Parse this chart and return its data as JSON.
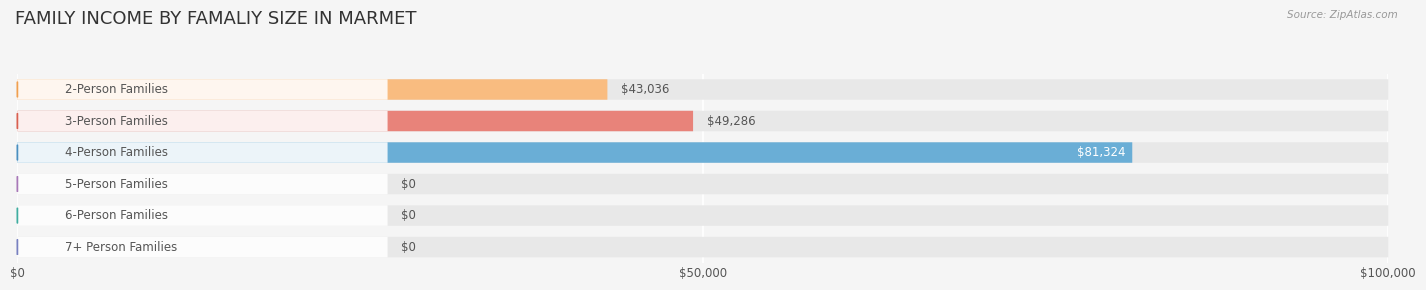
{
  "title": "FAMILY INCOME BY FAMALIY SIZE IN MARMET",
  "source": "Source: ZipAtlas.com",
  "categories": [
    "2-Person Families",
    "3-Person Families",
    "4-Person Families",
    "5-Person Families",
    "6-Person Families",
    "7+ Person Families"
  ],
  "values": [
    43036,
    49286,
    81324,
    0,
    0,
    0
  ],
  "bar_colors": [
    "#f9bc80",
    "#e8837a",
    "#6aaed6",
    "#c4a0c8",
    "#6dbfb8",
    "#a0aad4"
  ],
  "dot_colors": [
    "#f0a050",
    "#d96050",
    "#4a8fc0",
    "#a878b8",
    "#3fada0",
    "#7880c0"
  ],
  "bg_color": "#f5f5f5",
  "bar_bg_color": "#e8e8e8",
  "xlim": [
    0,
    100000
  ],
  "xticks": [
    0,
    50000,
    100000
  ],
  "xtick_labels": [
    "$0",
    "$50,000",
    "$100,000"
  ],
  "title_fontsize": 13,
  "label_fontsize": 8.5,
  "value_fontsize": 8.5,
  "bar_height": 0.65,
  "label_color": "#555555",
  "title_color": "#333333",
  "source_color": "#999999"
}
